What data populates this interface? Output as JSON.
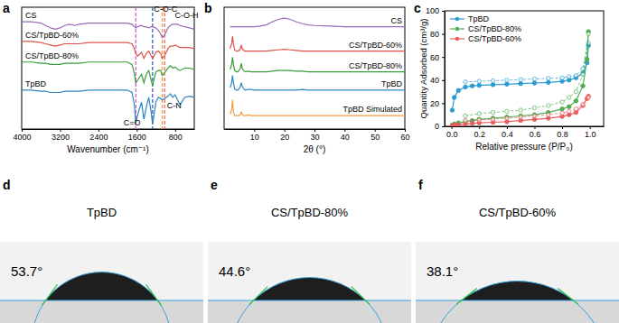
{
  "chart_data": [
    {
      "type": "line",
      "panel_label": "a",
      "x_label": "Wavenumber (cm⁻¹)",
      "x": [
        4000,
        3800,
        3600,
        3500,
        3400,
        3300,
        3200,
        3100,
        3000,
        2900,
        2800,
        2600,
        2400,
        2200,
        2000,
        1800,
        1700,
        1650,
        1620,
        1580,
        1500,
        1450,
        1400,
        1350,
        1300,
        1270,
        1200,
        1150,
        1100,
        1070,
        1020,
        950,
        900,
        850,
        800,
        750,
        700,
        600,
        500,
        400
      ],
      "xlim": [
        4000,
        400
      ],
      "xticks": [
        4000,
        3200,
        2400,
        1600,
        800
      ],
      "ylim": [
        0,
        100
      ],
      "tick_labels": "x",
      "series": [
        {
          "name": "CS",
          "color": "#9a6ab8",
          "values": [
            88,
            88,
            87,
            85,
            83,
            82,
            83,
            85,
            86,
            85,
            86,
            87,
            87,
            87,
            87,
            87,
            86,
            84,
            83,
            84,
            85,
            84,
            84,
            83,
            84,
            84,
            83,
            81,
            78,
            75,
            77,
            83,
            85,
            86,
            86,
            86,
            85,
            84,
            83,
            82
          ]
        },
        {
          "name": "CS/TpBD-60%",
          "color": "#e0524a",
          "values": [
            72,
            72,
            71,
            70,
            69,
            68,
            69,
            70,
            70,
            70,
            70,
            71,
            71,
            71,
            71,
            71,
            70,
            66,
            62,
            60,
            63,
            58,
            62,
            64,
            60,
            58,
            63,
            64,
            62,
            58,
            60,
            66,
            68,
            68,
            69,
            68,
            67,
            67,
            67,
            66
          ]
        },
        {
          "name": "CS/TpBD-80%",
          "color": "#3a9e3a",
          "values": [
            55,
            55,
            54,
            54,
            53,
            53,
            53,
            54,
            54,
            54,
            54,
            55,
            55,
            55,
            55,
            55,
            53,
            46,
            38,
            40,
            45,
            38,
            45,
            48,
            40,
            36,
            47,
            48,
            48,
            44,
            46,
            50,
            52,
            50,
            51,
            49,
            48,
            50,
            50,
            49
          ]
        },
        {
          "name": "TpBD",
          "color": "#2e86c1",
          "values": [
            32,
            32,
            31,
            31,
            30,
            30,
            30,
            31,
            31,
            31,
            31,
            32,
            32,
            32,
            32,
            32,
            30,
            20,
            5,
            12,
            22,
            8,
            18,
            26,
            14,
            4,
            22,
            26,
            25,
            24,
            25,
            27,
            29,
            26,
            28,
            24,
            20,
            26,
            27,
            26
          ]
        }
      ],
      "reference_lines": [
        {
          "x": 1620,
          "color": "#d84fd8"
        },
        {
          "x": 1270,
          "color": "#2850c8"
        },
        {
          "x": 1070,
          "color": "#f0a040"
        },
        {
          "x": 1020,
          "color": "#e8603c"
        }
      ],
      "annotations": [
        {
          "text": "C-O-C",
          "x": 1000,
          "y": 96
        },
        {
          "text": "C-O-H",
          "x": 560,
          "y": 91
        },
        {
          "text": "C=O",
          "x": 1700,
          "y": 3
        },
        {
          "text": "C-N",
          "x": 820,
          "y": 17
        }
      ]
    },
    {
      "type": "line",
      "panel_label": "b",
      "x_label": "2θ (°)",
      "x": [
        2,
        2.5,
        2.8,
        3.1,
        3.5,
        4,
        4.5,
        5,
        5.4,
        5.7,
        6,
        6.5,
        7,
        8,
        9,
        10,
        12,
        14,
        16,
        18,
        20,
        22,
        24,
        26,
        28,
        30,
        35,
        40,
        45,
        50,
        55,
        60
      ],
      "xlim": [
        0,
        60
      ],
      "xticks": [
        10,
        20,
        30,
        40,
        50,
        60
      ],
      "ylim": [
        0,
        100
      ],
      "tick_labels": "x",
      "series": [
        {
          "name": "CS",
          "color": "#9a6ab8",
          "values": [
            84,
            84,
            84,
            84,
            84,
            84,
            84,
            84,
            84,
            84,
            84,
            84,
            84,
            84,
            84,
            84,
            84.5,
            85.5,
            88,
            90,
            91,
            90,
            88,
            86.5,
            85.5,
            85,
            84.5,
            84,
            84,
            84,
            84,
            84
          ]
        },
        {
          "name": "CS/TpBD-60%",
          "color": "#e0524a",
          "values": [
            66,
            70,
            76,
            70,
            65,
            64,
            64,
            64.5,
            66,
            69,
            66,
            64.5,
            64,
            64,
            64,
            64,
            64,
            64,
            64.5,
            65,
            65.5,
            65,
            64.5,
            64,
            64,
            64,
            64,
            64,
            64,
            64,
            64,
            64
          ]
        },
        {
          "name": "CS/TpBD-80%",
          "color": "#3a9e3a",
          "values": [
            49,
            53,
            59,
            53,
            48,
            47,
            47,
            48,
            50,
            54,
            50,
            48,
            47,
            47.5,
            47,
            47,
            47,
            47,
            47.5,
            48,
            48,
            48,
            47.5,
            47.5,
            47,
            47,
            47,
            47,
            47,
            47,
            47,
            47
          ]
        },
        {
          "name": "TpBD",
          "color": "#2e86c1",
          "values": [
            34,
            38,
            44,
            38,
            33,
            32,
            32,
            33,
            35,
            38,
            35,
            33,
            32,
            32.5,
            32.5,
            32,
            32,
            32,
            32,
            32,
            32,
            32,
            32,
            32.5,
            32,
            32,
            32,
            32,
            32,
            32,
            32,
            32
          ]
        },
        {
          "name": "TpBD Simulated",
          "color": "#f39c3c",
          "values": [
            12,
            16,
            24,
            14,
            11,
            11,
            11,
            11,
            12,
            14,
            12,
            11,
            11,
            11.5,
            11,
            11,
            11,
            11,
            11,
            11,
            11,
            11,
            11,
            11,
            11,
            11,
            11,
            11,
            11,
            11,
            11,
            11
          ]
        }
      ]
    },
    {
      "type": "line",
      "panel_label": "c",
      "x_label": "Relative pressure (P/P₀)",
      "y_label": "Quantity Adsorbed (cm³/g)",
      "x": [
        0.005,
        0.02,
        0.05,
        0.1,
        0.15,
        0.2,
        0.3,
        0.4,
        0.5,
        0.6,
        0.7,
        0.8,
        0.85,
        0.9,
        0.95,
        0.98,
        0.99
      ],
      "desorption_x": [
        0.99,
        0.95,
        0.9,
        0.85,
        0.8,
        0.7,
        0.6,
        0.5,
        0.4,
        0.3,
        0.2,
        0.1
      ],
      "xlim": [
        -0.05,
        1.1
      ],
      "xticks": [
        {
          "value": 0,
          "label": "0.0"
        },
        0.2,
        0.4,
        0.6,
        0.8,
        {
          "value": 1,
          "label": "1.0"
        }
      ],
      "ylim": [
        0,
        100
      ],
      "yticks": [
        0,
        20,
        40,
        60,
        80,
        100
      ],
      "legend": "upper left",
      "series": [
        {
          "name": "TpBD",
          "color": "#2b9bd1",
          "marker": "circle",
          "values": [
            14,
            25,
            31,
            34,
            35,
            35.5,
            36,
            36.5,
            37,
            37.5,
            38,
            39,
            40,
            42,
            46,
            55,
            70
          ],
          "desorption_values": [
            72,
            50,
            44,
            43,
            42,
            41.5,
            41,
            40.5,
            40,
            39.5,
            39,
            38.5
          ]
        },
        {
          "name": "CS/TpBD-80%",
          "color": "#4caf50",
          "marker": "circle",
          "values": [
            1,
            2,
            3,
            4,
            5,
            6,
            7,
            8,
            9,
            10,
            12,
            15,
            17,
            22,
            35,
            58,
            82
          ],
          "desorption_values": [
            80,
            45,
            30,
            25,
            21,
            18,
            16,
            14,
            13,
            12,
            11,
            9
          ]
        },
        {
          "name": "CS/TpBD-60%",
          "color": "#e85d5d",
          "marker": "circle",
          "values": [
            0.5,
            1,
            1.5,
            2,
            2.5,
            3,
            3.5,
            4,
            5,
            6,
            7,
            8.5,
            10,
            12,
            18,
            24,
            26
          ],
          "desorption_values": [
            25,
            19,
            15,
            13,
            11.5,
            10,
            9,
            8,
            7,
            6,
            5.5,
            5
          ]
        }
      ]
    }
  ],
  "images": [
    {
      "panel_label": "d",
      "title": "TpBD",
      "angle": 53.7,
      "angle_label": "53.7°"
    },
    {
      "panel_label": "e",
      "title": "CS/TpBD-80%",
      "angle": 44.6,
      "angle_label": "44.6°"
    },
    {
      "panel_label": "f",
      "title": "CS/TpBD-60%",
      "angle": 38.1,
      "angle_label": "38.1°"
    }
  ]
}
